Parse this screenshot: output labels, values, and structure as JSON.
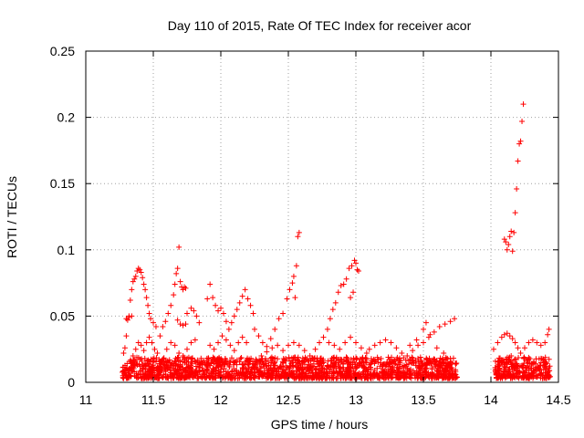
{
  "chart_data": {
    "type": "scatter",
    "title": "Day 110 of 2015, Rate Of TEC Index for receiver acor",
    "xlabel": "GPS time / hours",
    "ylabel": "ROTI / TECUs",
    "xlim": [
      11,
      14.5
    ],
    "ylim": [
      0,
      0.25
    ],
    "x_ticks": [
      "11",
      "11.5",
      "12",
      "12.5",
      "13",
      "13.5",
      "14",
      "14.5"
    ],
    "y_ticks": [
      "0",
      "0.05",
      "0.1",
      "0.15",
      "0.2",
      "0.25"
    ],
    "grid": true,
    "marker": "+",
    "series": [
      {
        "color": "#ff0000",
        "points": [
          [
            11.28,
            0.022
          ],
          [
            11.29,
            0.026
          ],
          [
            11.3,
            0.035
          ],
          [
            11.31,
            0.047
          ],
          [
            11.32,
            0.05
          ],
          [
            11.33,
            0.062
          ],
          [
            11.34,
            0.07
          ],
          [
            11.35,
            0.076
          ],
          [
            11.36,
            0.078
          ],
          [
            11.37,
            0.08
          ],
          [
            11.38,
            0.084
          ],
          [
            11.39,
            0.086
          ],
          [
            11.4,
            0.085
          ],
          [
            11.41,
            0.083
          ],
          [
            11.42,
            0.079
          ],
          [
            11.43,
            0.074
          ],
          [
            11.44,
            0.07
          ],
          [
            11.45,
            0.064
          ],
          [
            11.46,
            0.058
          ],
          [
            11.47,
            0.052
          ],
          [
            11.48,
            0.048
          ],
          [
            11.5,
            0.045
          ],
          [
            11.52,
            0.042
          ],
          [
            11.3,
            0.048
          ],
          [
            11.32,
            0.049
          ],
          [
            11.34,
            0.05
          ],
          [
            11.35,
            0.02
          ],
          [
            11.37,
            0.025
          ],
          [
            11.39,
            0.03
          ],
          [
            11.41,
            0.028
          ],
          [
            11.43,
            0.024
          ],
          [
            11.45,
            0.03
          ],
          [
            11.47,
            0.034
          ],
          [
            11.49,
            0.03
          ],
          [
            11.51,
            0.025
          ],
          [
            11.53,
            0.022
          ],
          [
            11.55,
            0.035
          ],
          [
            11.57,
            0.042
          ],
          [
            11.59,
            0.046
          ],
          [
            11.61,
            0.052
          ],
          [
            11.63,
            0.058
          ],
          [
            11.65,
            0.066
          ],
          [
            11.66,
            0.074
          ],
          [
            11.67,
            0.082
          ],
          [
            11.68,
            0.086
          ],
          [
            11.69,
            0.102
          ],
          [
            11.7,
            0.076
          ],
          [
            11.71,
            0.072
          ],
          [
            11.72,
            0.07
          ],
          [
            11.73,
            0.072
          ],
          [
            11.74,
            0.071
          ],
          [
            11.68,
            0.047
          ],
          [
            11.7,
            0.044
          ],
          [
            11.72,
            0.043
          ],
          [
            11.74,
            0.044
          ],
          [
            11.6,
            0.025
          ],
          [
            11.63,
            0.03
          ],
          [
            11.66,
            0.028
          ],
          [
            11.69,
            0.022
          ],
          [
            11.72,
            0.02
          ],
          [
            11.75,
            0.025
          ],
          [
            11.78,
            0.03
          ],
          [
            11.81,
            0.032
          ],
          [
            11.75,
            0.052
          ],
          [
            11.78,
            0.056
          ],
          [
            11.8,
            0.054
          ],
          [
            11.82,
            0.05
          ],
          [
            11.84,
            0.045
          ],
          [
            11.9,
            0.063
          ],
          [
            11.92,
            0.074
          ],
          [
            11.94,
            0.064
          ],
          [
            11.96,
            0.058
          ],
          [
            11.98,
            0.054
          ],
          [
            12.0,
            0.056
          ],
          [
            12.02,
            0.052
          ],
          [
            12.04,
            0.046
          ],
          [
            12.06,
            0.04
          ],
          [
            12.08,
            0.045
          ],
          [
            12.1,
            0.05
          ],
          [
            12.12,
            0.055
          ],
          [
            12.14,
            0.06
          ],
          [
            12.16,
            0.065
          ],
          [
            12.18,
            0.07
          ],
          [
            12.2,
            0.063
          ],
          [
            12.22,
            0.058
          ],
          [
            12.24,
            0.052
          ],
          [
            11.92,
            0.028
          ],
          [
            11.95,
            0.025
          ],
          [
            11.98,
            0.03
          ],
          [
            12.01,
            0.035
          ],
          [
            12.04,
            0.032
          ],
          [
            12.07,
            0.028
          ],
          [
            12.1,
            0.024
          ],
          [
            12.13,
            0.03
          ],
          [
            12.16,
            0.034
          ],
          [
            12.19,
            0.03
          ],
          [
            12.25,
            0.04
          ],
          [
            12.28,
            0.035
          ],
          [
            12.31,
            0.03
          ],
          [
            12.34,
            0.027
          ],
          [
            12.37,
            0.033
          ],
          [
            12.4,
            0.04
          ],
          [
            12.43,
            0.048
          ],
          [
            12.46,
            0.052
          ],
          [
            12.49,
            0.063
          ],
          [
            12.51,
            0.07
          ],
          [
            12.53,
            0.075
          ],
          [
            12.54,
            0.08
          ],
          [
            12.56,
            0.088
          ],
          [
            12.57,
            0.11
          ],
          [
            12.58,
            0.113
          ],
          [
            12.55,
            0.064
          ],
          [
            12.3,
            0.02
          ],
          [
            12.34,
            0.023
          ],
          [
            12.38,
            0.026
          ],
          [
            12.42,
            0.028
          ],
          [
            12.46,
            0.024
          ],
          [
            12.5,
            0.028
          ],
          [
            12.54,
            0.03
          ],
          [
            12.58,
            0.028
          ],
          [
            12.62,
            0.024
          ],
          [
            12.66,
            0.02
          ],
          [
            12.7,
            0.025
          ],
          [
            12.73,
            0.03
          ],
          [
            12.76,
            0.034
          ],
          [
            12.79,
            0.04
          ],
          [
            12.81,
            0.048
          ],
          [
            12.83,
            0.055
          ],
          [
            12.85,
            0.06
          ],
          [
            12.87,
            0.068
          ],
          [
            12.89,
            0.073
          ],
          [
            12.91,
            0.074
          ],
          [
            12.93,
            0.078
          ],
          [
            12.95,
            0.086
          ],
          [
            12.97,
            0.088
          ],
          [
            12.99,
            0.092
          ],
          [
            13.0,
            0.09
          ],
          [
            13.01,
            0.085
          ],
          [
            13.02,
            0.084
          ],
          [
            12.96,
            0.064
          ],
          [
            12.98,
            0.068
          ],
          [
            12.8,
            0.03
          ],
          [
            12.84,
            0.028
          ],
          [
            12.88,
            0.025
          ],
          [
            12.92,
            0.03
          ],
          [
            12.96,
            0.034
          ],
          [
            13.0,
            0.03
          ],
          [
            13.04,
            0.026
          ],
          [
            13.08,
            0.022
          ],
          [
            13.1,
            0.025
          ],
          [
            13.14,
            0.028
          ],
          [
            13.18,
            0.03
          ],
          [
            13.22,
            0.032
          ],
          [
            13.26,
            0.03
          ],
          [
            13.3,
            0.026
          ],
          [
            13.34,
            0.022
          ],
          [
            13.38,
            0.02
          ],
          [
            13.42,
            0.024
          ],
          [
            13.46,
            0.028
          ],
          [
            13.5,
            0.03
          ],
          [
            13.54,
            0.034
          ],
          [
            13.58,
            0.038
          ],
          [
            13.62,
            0.042
          ],
          [
            13.66,
            0.044
          ],
          [
            13.7,
            0.046
          ],
          [
            13.73,
            0.048
          ],
          [
            13.4,
            0.028
          ],
          [
            13.45,
            0.032
          ],
          [
            13.5,
            0.04
          ],
          [
            13.52,
            0.045
          ],
          [
            13.55,
            0.036
          ],
          [
            13.6,
            0.026
          ],
          [
            13.65,
            0.022
          ],
          [
            13.7,
            0.018
          ],
          [
            14.02,
            0.025
          ],
          [
            14.05,
            0.03
          ],
          [
            14.08,
            0.034
          ],
          [
            14.1,
            0.036
          ],
          [
            14.12,
            0.037
          ],
          [
            14.14,
            0.035
          ],
          [
            14.16,
            0.033
          ],
          [
            14.18,
            0.03
          ],
          [
            14.2,
            0.026
          ],
          [
            14.22,
            0.022
          ],
          [
            14.25,
            0.026
          ],
          [
            14.28,
            0.03
          ],
          [
            14.31,
            0.032
          ],
          [
            14.34,
            0.03
          ],
          [
            14.37,
            0.028
          ],
          [
            14.4,
            0.03
          ],
          [
            14.42,
            0.036
          ],
          [
            14.43,
            0.04
          ],
          [
            14.1,
            0.108
          ],
          [
            14.11,
            0.106
          ],
          [
            14.12,
            0.1
          ],
          [
            14.13,
            0.104
          ],
          [
            14.14,
            0.11
          ],
          [
            14.15,
            0.114
          ],
          [
            14.16,
            0.099
          ],
          [
            14.17,
            0.113
          ],
          [
            14.18,
            0.128
          ],
          [
            14.19,
            0.146
          ],
          [
            14.2,
            0.167
          ],
          [
            14.21,
            0.18
          ],
          [
            14.22,
            0.182
          ],
          [
            14.23,
            0.197
          ],
          [
            14.24,
            0.21
          ],
          [
            14.05,
            0.012
          ],
          [
            14.1,
            0.015
          ],
          [
            14.15,
            0.02
          ],
          [
            14.2,
            0.012
          ],
          [
            14.25,
            0.018
          ],
          [
            14.3,
            0.014
          ],
          [
            14.35,
            0.01
          ],
          [
            14.4,
            0.012
          ]
        ]
      }
    ]
  }
}
